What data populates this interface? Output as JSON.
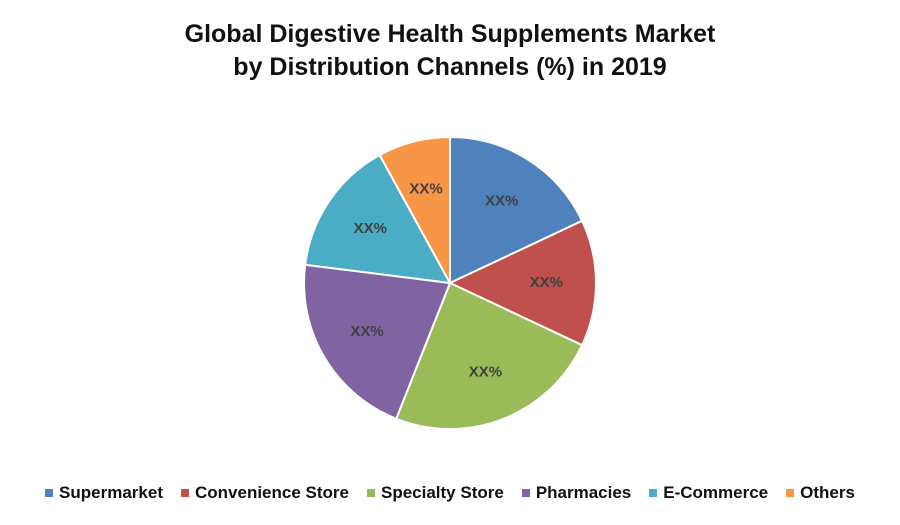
{
  "chart_data": {
    "type": "pie",
    "title": "Global Digestive Health Supplements Market by Distribution Channels (%) in 2019",
    "title_lines": [
      "Global Digestive Health Supplements Market",
      "by Distribution Channels (%) in 2019"
    ],
    "slices": [
      {
        "name": "Supermarket",
        "value": 18,
        "label": "XX%",
        "color": "#4F81BD"
      },
      {
        "name": "Convenience Store",
        "value": 14,
        "label": "XX%",
        "color": "#C0504D"
      },
      {
        "name": "Specialty Store",
        "value": 24,
        "label": "XX%",
        "color": "#9BBB59"
      },
      {
        "name": "Pharmacies",
        "value": 21,
        "label": "XX%",
        "color": "#8064A2"
      },
      {
        "name": "E-Commerce",
        "value": 15,
        "label": "XX%",
        "color": "#4BACC6"
      },
      {
        "name": "Others",
        "value": 8,
        "label": "XX%",
        "color": "#F79646"
      }
    ],
    "legend_position": "bottom"
  }
}
